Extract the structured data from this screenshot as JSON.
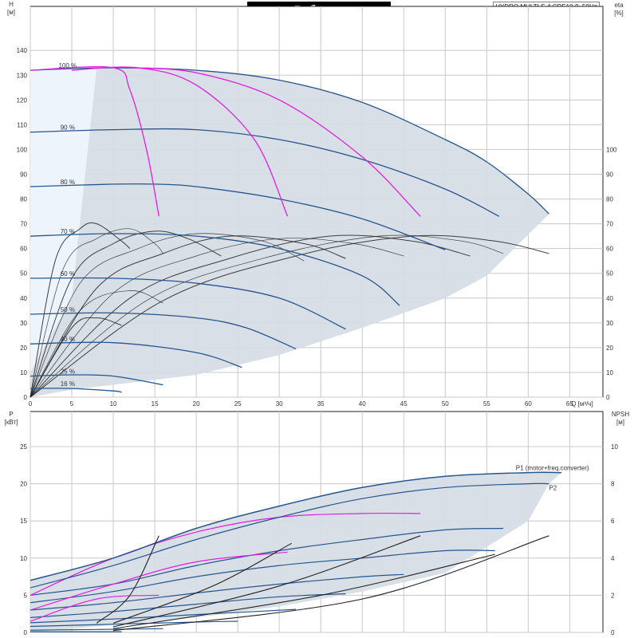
{
  "title": "Рабочие характеристики",
  "model": "HYDRO MULTI-E 4 CRE10-9, 50Hz",
  "colors": {
    "envelope": "#d6dde5",
    "envelope_light": "#eef4fb",
    "speed_curve": "#27568e",
    "system_curve": "#e020e0",
    "efficiency": "#222222"
  },
  "chart_data": [
    {
      "type": "line",
      "panel": "top",
      "xlabel": "Q [м³/ч]",
      "ylabel": "H [м]",
      "y2label": "eta [%]",
      "xlim": [
        0,
        65
      ],
      "ylim": [
        0,
        150
      ],
      "y2lim": [
        0,
        150
      ],
      "x_ticks": [
        "0",
        "5",
        "10",
        "15",
        "20",
        "25",
        "30",
        "35",
        "40",
        "45",
        "50",
        "55",
        "60",
        "65"
      ],
      "y_ticks": [
        "0",
        "10",
        "20",
        "30",
        "40",
        "50",
        "60",
        "70",
        "80",
        "90",
        "100",
        "110",
        "120",
        "130",
        "140"
      ],
      "y2_ticks": [
        "0",
        "10",
        "20",
        "30",
        "40",
        "50",
        "60",
        "70",
        "80",
        "90",
        "100"
      ],
      "grid": true,
      "envelope": {
        "upper": [
          [
            0,
            132
          ],
          [
            10,
            133
          ],
          [
            20,
            132
          ],
          [
            30,
            128
          ],
          [
            40,
            119
          ],
          [
            50,
            104
          ],
          [
            55,
            95
          ],
          [
            60,
            82
          ],
          [
            62.5,
            74
          ]
        ],
        "lower": [
          [
            0,
            0
          ],
          [
            5,
            3
          ],
          [
            10,
            5
          ],
          [
            20,
            9
          ],
          [
            30,
            17
          ],
          [
            40,
            28
          ],
          [
            50,
            40
          ],
          [
            55,
            49
          ],
          [
            62.5,
            74
          ]
        ]
      },
      "speed_curves": [
        {
          "label": "100 %",
          "points": [
            [
              0,
              132
            ],
            [
              10,
              133
            ],
            [
              20,
              132
            ],
            [
              30,
              128
            ],
            [
              40,
              119
            ],
            [
              50,
              104
            ],
            [
              55,
              95
            ],
            [
              60,
              82
            ],
            [
              62.5,
              74
            ]
          ]
        },
        {
          "label": "90 %",
          "points": [
            [
              0,
              107
            ],
            [
              10,
              108
            ],
            [
              20,
              108
            ],
            [
              30,
              104
            ],
            [
              40,
              96
            ],
            [
              50,
              84
            ],
            [
              56.5,
              73
            ]
          ]
        },
        {
          "label": "80 %",
          "points": [
            [
              0,
              85
            ],
            [
              10,
              86
            ],
            [
              15,
              86
            ],
            [
              20,
              85
            ],
            [
              30,
              80
            ],
            [
              40,
              72
            ],
            [
              50,
              59.5
            ]
          ]
        },
        {
          "label": "70 %",
          "points": [
            [
              0,
              65
            ],
            [
              10,
              66
            ],
            [
              20,
              65
            ],
            [
              30,
              60
            ],
            [
              40,
              49
            ],
            [
              44.5,
              37
            ]
          ]
        },
        {
          "label": "60 %",
          "points": [
            [
              0,
              48
            ],
            [
              10,
              48
            ],
            [
              20,
              46
            ],
            [
              30,
              40
            ],
            [
              38,
              27.5
            ]
          ]
        },
        {
          "label": "50 %",
          "points": [
            [
              0,
              33.5
            ],
            [
              10,
              34
            ],
            [
              20,
              32
            ],
            [
              26,
              28
            ],
            [
              32,
              19.5
            ]
          ]
        },
        {
          "label": "40 %",
          "points": [
            [
              0,
              21.5
            ],
            [
              10,
              22
            ],
            [
              20,
              18
            ],
            [
              25.5,
              12
            ]
          ]
        },
        {
          "label": "25 %",
          "points": [
            [
              0,
              8.5
            ],
            [
              5,
              9
            ],
            [
              10,
              8.5
            ],
            [
              16,
              5
            ]
          ]
        },
        {
          "label": "16 %",
          "points": [
            [
              0,
              3.5
            ],
            [
              5,
              3.5
            ],
            [
              10,
              2.5
            ],
            [
              11,
              2
            ]
          ]
        }
      ],
      "system_curves": [
        {
          "points": [
            [
              0,
              132
            ],
            [
              10,
              133
            ],
            [
              12,
              124
            ],
            [
              14,
              100
            ],
            [
              15.5,
              73
            ]
          ]
        },
        {
          "points": [
            [
              5,
              132
            ],
            [
              13,
              133
            ],
            [
              20,
              126
            ],
            [
              27,
              104
            ],
            [
              31,
              73
            ]
          ]
        },
        {
          "points": [
            [
              12,
              133
            ],
            [
              20,
              131
            ],
            [
              30,
              120
            ],
            [
              40,
              97
            ],
            [
              47,
              73
            ]
          ]
        }
      ],
      "efficiency_curves": [
        [
          [
            0,
            0
          ],
          [
            3,
            55
          ],
          [
            6,
            68
          ],
          [
            8,
            70
          ],
          [
            11,
            63
          ],
          [
            12,
            60
          ]
        ],
        [
          [
            0,
            0
          ],
          [
            4,
            52
          ],
          [
            8,
            64
          ],
          [
            12,
            68
          ],
          [
            15,
            62
          ],
          [
            16,
            58
          ]
        ],
        [
          [
            0,
            0
          ],
          [
            5,
            48
          ],
          [
            10,
            62
          ],
          [
            15,
            67
          ],
          [
            19,
            64
          ],
          [
            23,
            57
          ]
        ],
        [
          [
            0,
            0
          ],
          [
            6,
            46
          ],
          [
            13,
            60
          ],
          [
            20,
            66
          ],
          [
            28,
            63
          ],
          [
            33,
            55
          ]
        ],
        [
          [
            0,
            0
          ],
          [
            8,
            44
          ],
          [
            16,
            58
          ],
          [
            24,
            65
          ],
          [
            33,
            62
          ],
          [
            38,
            56
          ]
        ],
        [
          [
            0,
            0
          ],
          [
            10,
            42
          ],
          [
            20,
            57
          ],
          [
            30,
            64
          ],
          [
            39,
            62
          ],
          [
            45,
            57
          ]
        ],
        [
          [
            0,
            0
          ],
          [
            12,
            40
          ],
          [
            24,
            56
          ],
          [
            36,
            65
          ],
          [
            46,
            63
          ],
          [
            53,
            57
          ]
        ],
        [
          [
            0,
            0
          ],
          [
            14,
            39
          ],
          [
            28,
            56
          ],
          [
            42,
            65
          ],
          [
            52,
            63
          ],
          [
            57,
            58
          ]
        ],
        [
          [
            0,
            0
          ],
          [
            16,
            39
          ],
          [
            32,
            57
          ],
          [
            46,
            65
          ],
          [
            56,
            63
          ],
          [
            62.5,
            58
          ]
        ],
        [
          [
            0,
            0
          ],
          [
            6,
            35
          ],
          [
            12,
            43
          ],
          [
            16,
            38
          ]
        ],
        [
          [
            0,
            0
          ],
          [
            5,
            28
          ],
          [
            8,
            32
          ],
          [
            11,
            29
          ]
        ]
      ]
    },
    {
      "type": "line",
      "panel": "bottom",
      "ylabel": "P [кВт]",
      "y2label": "NPSH [м]",
      "ylim": [
        0,
        30
      ],
      "y2lim": [
        0,
        12
      ],
      "y_ticks": [
        "0",
        "5",
        "10",
        "15",
        "20",
        "25"
      ],
      "y2_ticks": [
        "0",
        "2",
        "4",
        "6",
        "8",
        "10"
      ],
      "grid": true,
      "curve_labels": [
        "P1 (motor+freq.converter)",
        "P2"
      ],
      "p1": [
        [
          0,
          7
        ],
        [
          10,
          10
        ],
        [
          20,
          14
        ],
        [
          30,
          17
        ],
        [
          40,
          19.5
        ],
        [
          50,
          21
        ],
        [
          60,
          21.5
        ],
        [
          64,
          21.5
        ]
      ],
      "p2": [
        [
          0,
          6
        ],
        [
          10,
          9
        ],
        [
          20,
          12.5
        ],
        [
          30,
          15.5
        ],
        [
          40,
          18
        ],
        [
          50,
          19.5
        ],
        [
          60,
          20
        ],
        [
          62.5,
          20
        ]
      ],
      "envelope_upper": [
        [
          0,
          7
        ],
        [
          10,
          10
        ],
        [
          20,
          14
        ],
        [
          30,
          17
        ],
        [
          40,
          19.5
        ],
        [
          50,
          21
        ],
        [
          60,
          21.5
        ],
        [
          64,
          21.5
        ]
      ],
      "envelope_lower": [
        [
          0,
          0
        ],
        [
          10,
          1
        ],
        [
          20,
          2
        ],
        [
          30,
          3.5
        ],
        [
          40,
          5.5
        ],
        [
          50,
          8
        ],
        [
          60,
          15
        ],
        [
          62.5,
          20
        ]
      ],
      "power_curves": [
        [
          [
            0,
            5
          ],
          [
            10,
            6.5
          ],
          [
            20,
            9
          ],
          [
            30,
            11
          ],
          [
            40,
            12.5
          ],
          [
            50,
            13.8
          ],
          [
            57,
            14
          ]
        ],
        [
          [
            0,
            4
          ],
          [
            10,
            5.5
          ],
          [
            20,
            7.5
          ],
          [
            30,
            9
          ],
          [
            40,
            10
          ],
          [
            50,
            11
          ],
          [
            56,
            11
          ]
        ],
        [
          [
            0,
            3
          ],
          [
            10,
            4
          ],
          [
            20,
            5.3
          ],
          [
            30,
            6.5
          ],
          [
            40,
            7.5
          ],
          [
            45,
            7.8
          ]
        ],
        [
          [
            0,
            2
          ],
          [
            10,
            2.8
          ],
          [
            20,
            3.8
          ],
          [
            30,
            4.8
          ],
          [
            38,
            5.2
          ]
        ],
        [
          [
            0,
            1.3
          ],
          [
            10,
            1.8
          ],
          [
            20,
            2.4
          ],
          [
            32,
            3.1
          ]
        ],
        [
          [
            0,
            0.8
          ],
          [
            10,
            1.1
          ],
          [
            20,
            1.4
          ],
          [
            25,
            1.5
          ]
        ],
        [
          [
            0,
            0.3
          ],
          [
            8,
            0.4
          ],
          [
            16,
            0.5
          ]
        ],
        [
          [
            0,
            0.1
          ],
          [
            11,
            0.1
          ]
        ]
      ],
      "system_power_curves": [
        [
          [
            0,
            5
          ],
          [
            10,
            10
          ],
          [
            20,
            13.5
          ],
          [
            30,
            15.5
          ],
          [
            40,
            16
          ],
          [
            47,
            16
          ]
        ],
        [
          [
            0,
            3
          ],
          [
            10,
            6.5
          ],
          [
            20,
            9.5
          ],
          [
            31,
            10.8
          ]
        ],
        [
          [
            0,
            1.5
          ],
          [
            8,
            4.5
          ],
          [
            15.5,
            5
          ]
        ]
      ],
      "npsh_curves": [
        [
          [
            8,
            0.5
          ],
          [
            12,
            2
          ],
          [
            15.5,
            5.2
          ]
        ],
        [
          [
            10,
            0.5
          ],
          [
            22,
            2.5
          ],
          [
            31.5,
            4.8
          ]
        ],
        [
          [
            10,
            0.3
          ],
          [
            30,
            2.5
          ],
          [
            47,
            5.2
          ]
        ],
        [
          [
            10,
            0.2
          ],
          [
            35,
            2
          ],
          [
            56,
            4.2
          ]
        ],
        [
          [
            10,
            0.1
          ],
          [
            40,
            1.8
          ],
          [
            62.5,
            5.2
          ]
        ]
      ]
    }
  ]
}
